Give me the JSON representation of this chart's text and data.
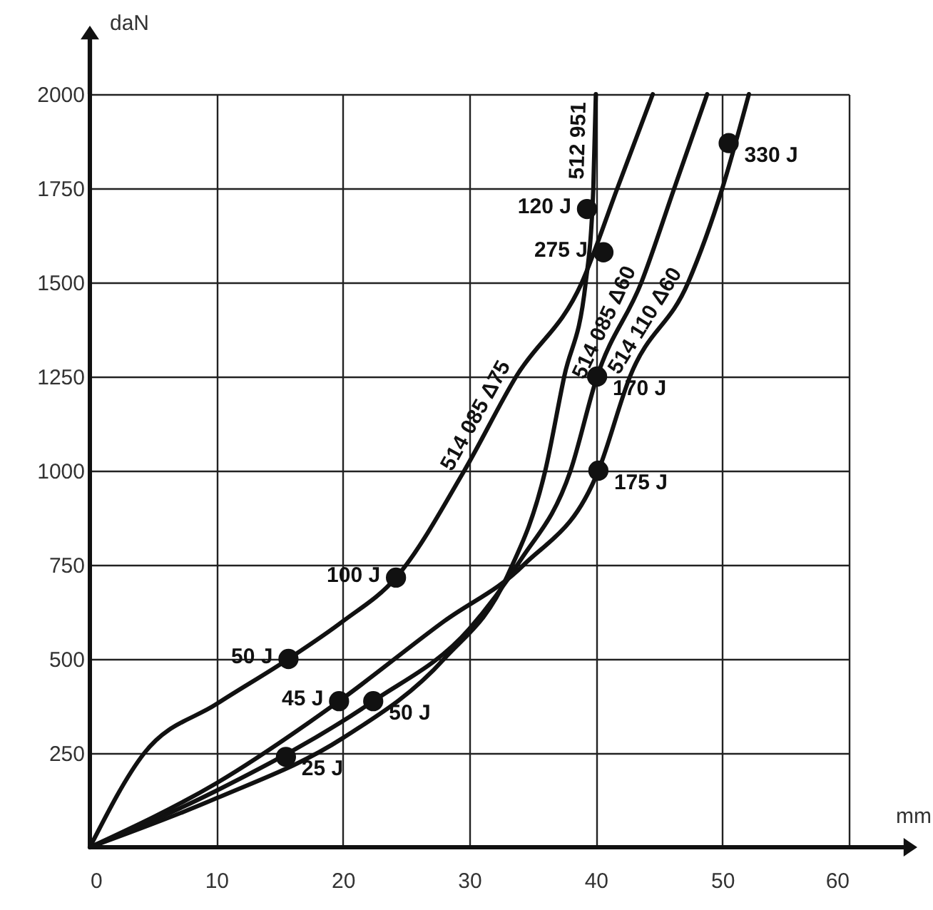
{
  "chart_data": {
    "type": "line",
    "xlabel": "mm",
    "ylabel": "daN",
    "xlim": [
      0,
      60
    ],
    "ylim": [
      0,
      2000
    ],
    "xticks": [
      0,
      10,
      20,
      30,
      40,
      50,
      60
    ],
    "yticks": [
      250,
      500,
      750,
      1000,
      1250,
      1500,
      1750,
      2000
    ],
    "grid": true,
    "marker": "none",
    "line_style": "solid",
    "series": [
      {
        "name": "514 085 Δ75",
        "color": "#111111",
        "x": [
          0,
          4.3,
          10,
          15.7,
          20,
          24.2,
          29.6,
          33.7,
          38.9,
          41.7,
          44.5
        ],
        "values": [
          0,
          250,
          380,
          500,
          600,
          716,
          1000,
          1250,
          1500,
          1750,
          2000
        ]
      },
      {
        "name": "512 951",
        "color": "#111111",
        "x": [
          0,
          10,
          20,
          28,
          33,
          36,
          37.5,
          39.2,
          39.8,
          40
        ],
        "values": [
          0,
          130,
          290,
          500,
          720,
          1000,
          1250,
          1500,
          1750,
          2000
        ]
      },
      {
        "name": "514 085 Δ60",
        "color": "#111111",
        "x": [
          0,
          10,
          22.4,
          30,
          34,
          38,
          40.1,
          43.6,
          46.2,
          48.8
        ],
        "values": [
          0,
          150,
          388,
          580,
          760,
          1000,
          1250,
          1500,
          1750,
          2000
        ]
      },
      {
        "name": "514 110 Δ60",
        "color": "#111111",
        "x": [
          0,
          10,
          19.7,
          28,
          34.3,
          40.2,
          42.7,
          47.3,
          50,
          52.1
        ],
        "values": [
          0,
          170,
          388,
          600,
          750,
          1000,
          1250,
          1500,
          1750,
          2000
        ]
      },
      {
        "type": "scatter",
        "color": "#111111",
        "marker": "circle",
        "x": [
          15.7,
          24.2,
          19.7,
          22.4,
          15.5,
          40.2,
          40.1,
          39.3,
          40.6,
          50.5
        ],
        "values": [
          500,
          716,
          388,
          388,
          240,
          1000,
          1250,
          1695,
          1580,
          1870
        ]
      }
    ],
    "annotations": [
      {
        "text": "50 J",
        "x": 15.7,
        "y": 500
      },
      {
        "text": "100 J",
        "x": 24.2,
        "y": 716
      },
      {
        "text": "45 J",
        "x": 19.7,
        "y": 388
      },
      {
        "text": "50 J",
        "x": 22.4,
        "y": 388
      },
      {
        "text": "25 J",
        "x": 15.5,
        "y": 240
      },
      {
        "text": "175 J",
        "x": 40.2,
        "y": 1000
      },
      {
        "text": "170 J",
        "x": 40.1,
        "y": 1250
      },
      {
        "text": "120 J",
        "x": 39.3,
        "y": 1695
      },
      {
        "text": "275 J",
        "x": 40.6,
        "y": 1580
      },
      {
        "text": "330 J",
        "x": 50.5,
        "y": 1870
      }
    ]
  }
}
